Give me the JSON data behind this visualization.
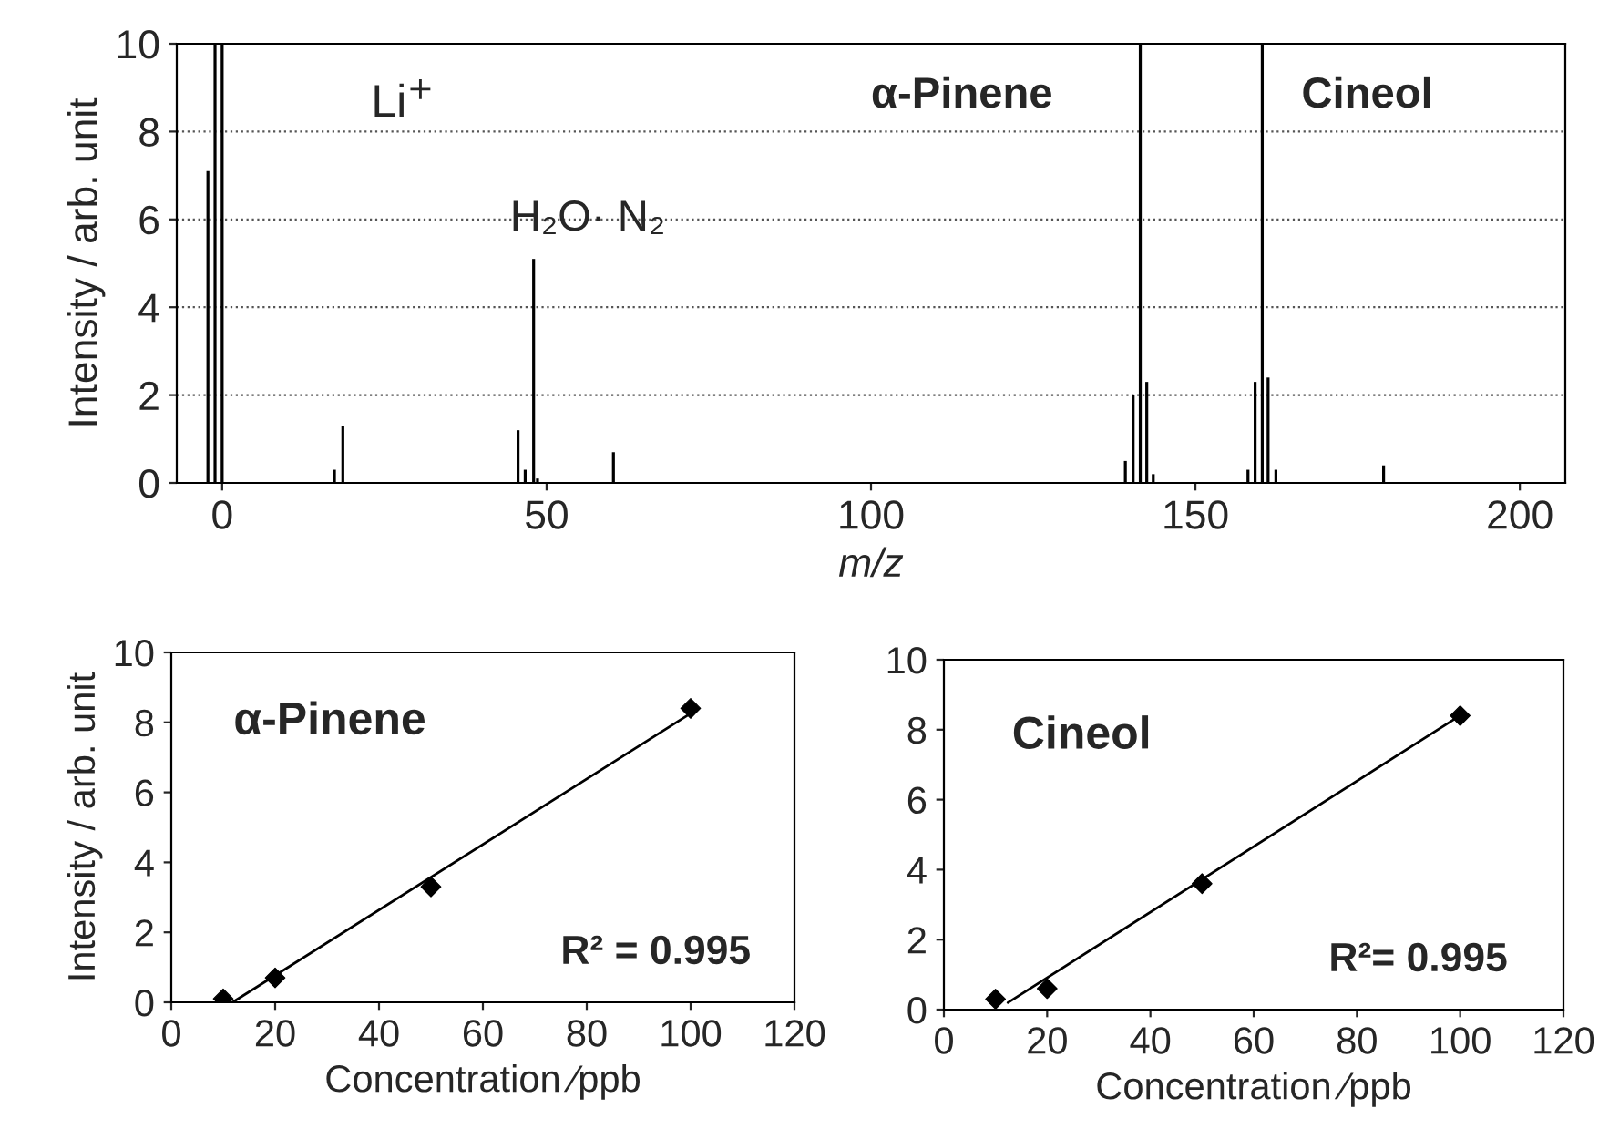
{
  "chart_data": [
    {
      "type": "bar",
      "xlabel": "m/z",
      "ylabel": "Intensity / arb. unit",
      "x": [
        -2.2,
        -1.1,
        0,
        17.3,
        18.6,
        45.6,
        46.7,
        48,
        48.6,
        60.3,
        139.2,
        140.4,
        141.5,
        142.5,
        143.5,
        158.1,
        159.2,
        160.3,
        161.2,
        162.4,
        179
      ],
      "values": [
        7.1,
        10,
        10,
        0.3,
        1.3,
        1.2,
        0.3,
        5.1,
        0.1,
        0.7,
        0.5,
        2,
        10,
        2.3,
        0.2,
        0.3,
        2.3,
        10,
        2.4,
        0.3,
        0.4
      ],
      "color": "#000000",
      "xlim": [
        -7,
        207
      ],
      "xticks": [
        0,
        50,
        100,
        150,
        200
      ],
      "ylim": [
        0,
        10
      ],
      "yticks": [
        0,
        2,
        4,
        6,
        8,
        10
      ],
      "grid": "y",
      "annotations": [
        "Li$^{+}$",
        "H₂O· N₂",
        "α-Pinene",
        "Cineol"
      ]
    },
    {
      "type": "scatter",
      "xlabel": "Concentration ⁄ppb",
      "ylabel": "Intensity / arb. unit",
      "series": [
        {
          "type": "scatter",
          "color": "#000000",
          "marker": "diamond",
          "x": [
            10,
            20,
            50,
            100
          ],
          "values": [
            0.1,
            0.7,
            3.3,
            8.4
          ]
        },
        {
          "type": "line",
          "color": "#000000",
          "x": [
            11.8,
            101
          ],
          "values": [
            0,
            8.35
          ]
        }
      ],
      "xlim": [
        0,
        120
      ],
      "xticks": [
        0,
        20,
        40,
        60,
        80,
        100,
        120
      ],
      "ylim": [
        0,
        10
      ],
      "yticks": [
        0,
        2,
        4,
        6,
        8,
        10
      ],
      "annotations": [
        "α-Pinene",
        "R² = 0.995"
      ]
    },
    {
      "type": "scatter",
      "xlabel": "Concentration ⁄ppb",
      "series": [
        {
          "type": "scatter",
          "color": "#000000",
          "marker": "diamond",
          "x": [
            10,
            20,
            50,
            100
          ],
          "values": [
            0.3,
            0.6,
            3.6,
            8.4
          ]
        },
        {
          "type": "line",
          "color": "#000000",
          "x": [
            12.4,
            99.4
          ],
          "values": [
            0.2,
            8.35
          ]
        }
      ],
      "xlim": [
        0,
        120
      ],
      "xticks": [
        0,
        20,
        40,
        60,
        80,
        100,
        120
      ],
      "ylim": [
        0,
        10
      ],
      "yticks": [
        0,
        2,
        4,
        6,
        8,
        10
      ],
      "annotations": [
        "Cineol",
        "R²= 0.995"
      ]
    }
  ]
}
